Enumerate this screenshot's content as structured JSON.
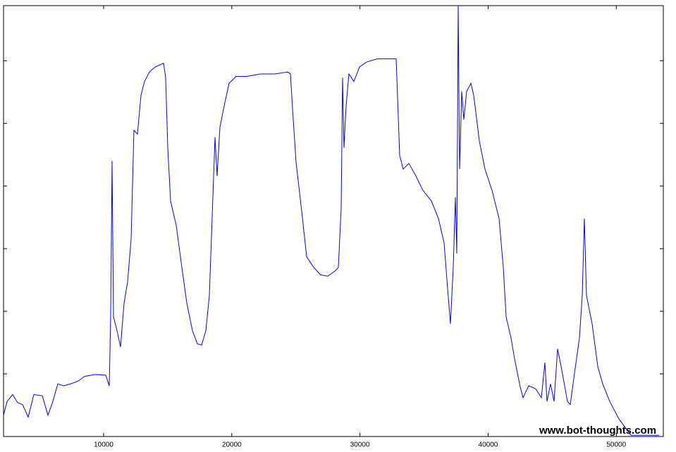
{
  "chart_data": {
    "type": "line",
    "annotation": "www.bot-thoughts.com",
    "x": [
      2190,
      2465,
      2905,
      3290,
      3675,
      4115,
      4555,
      5215,
      5655,
      6040,
      6425,
      6865,
      7415,
      7965,
      8515,
      9340,
      10165,
      10440,
      10550,
      10660,
      10770,
      11045,
      11320,
      11595,
      11870,
      12145,
      12365,
      12640,
      12915,
      13190,
      13575,
      14015,
      14675,
      14840,
      15005,
      15225,
      15665,
      16105,
      16490,
      16930,
      17315,
      17645,
      17975,
      18250,
      18525,
      18690,
      18855,
      19075,
      19405,
      19790,
      20340,
      21165,
      22265,
      23365,
      24355,
      24575,
      24795,
      25015,
      25455,
      25840,
      26390,
      26940,
      27490,
      28040,
      28315,
      28535,
      28645,
      28755,
      28920,
      29140,
      29525,
      29965,
      30515,
      31340,
      32165,
      32825,
      33100,
      33375,
      33815,
      34365,
      34915,
      35575,
      36125,
      36565,
      36840,
      37060,
      37280,
      37445,
      37555,
      37665,
      37775,
      37940,
      38105,
      38325,
      38655,
      38875,
      39315,
      39755,
      40305,
      40855,
      41185,
      41405,
      41790,
      42065,
      42505,
      42725,
      43165,
      43715,
      44155,
      44430,
      44595,
      44870,
      45145,
      45420,
      45695,
      46190,
      46410,
      46740,
      47125,
      47345,
      47510,
      47675,
      48115,
      48555,
      48940,
      49490,
      50205,
      50755,
      51140,
      53340
    ],
    "series": [
      {
        "color": "#0000ff",
        "values": [
          0.34,
          0.56,
          0.67,
          0.54,
          0.51,
          0.31,
          0.67,
          0.65,
          0.34,
          0.56,
          0.84,
          0.81,
          0.84,
          0.88,
          0.96,
          0.99,
          0.98,
          0.81,
          1.91,
          4.4,
          1.91,
          1.69,
          1.43,
          2.13,
          2.47,
          3.15,
          4.89,
          4.83,
          5.45,
          5.67,
          5.82,
          5.9,
          5.96,
          5.73,
          4.61,
          3.76,
          3.37,
          2.7,
          2.13,
          1.69,
          1.48,
          1.46,
          1.69,
          2.25,
          3.82,
          4.78,
          4.16,
          4.94,
          5.28,
          5.64,
          5.75,
          5.75,
          5.79,
          5.79,
          5.82,
          5.79,
          5.06,
          4.38,
          3.6,
          2.87,
          2.7,
          2.58,
          2.56,
          2.64,
          2.7,
          3.65,
          5.73,
          4.61,
          5.28,
          5.79,
          5.67,
          5.9,
          5.98,
          6.03,
          6.03,
          6.03,
          4.49,
          4.27,
          4.36,
          4.16,
          3.93,
          3.76,
          3.48,
          3.09,
          2.36,
          1.8,
          2.7,
          3.82,
          2.92,
          6.88,
          4.27,
          5.51,
          5.06,
          5.51,
          5.64,
          5.45,
          4.72,
          4.27,
          3.93,
          3.48,
          2.7,
          1.91,
          1.57,
          1.24,
          0.79,
          0.62,
          0.81,
          0.76,
          0.62,
          1.18,
          0.56,
          0.84,
          0.56,
          1.4,
          1.12,
          0.56,
          0.51,
          1.01,
          1.57,
          2.25,
          3.48,
          2.25,
          1.8,
          1.12,
          0.84,
          0.56,
          0.28,
          0.13,
          0.02,
          0.02
        ]
      }
    ],
    "xlim": [
      2190,
      53670
    ],
    "xticks": [
      10000,
      20000,
      30000,
      40000,
      50000
    ],
    "ylim": [
      0,
      6.88
    ],
    "yticks": [
      1,
      2,
      3,
      4,
      5,
      6
    ]
  }
}
